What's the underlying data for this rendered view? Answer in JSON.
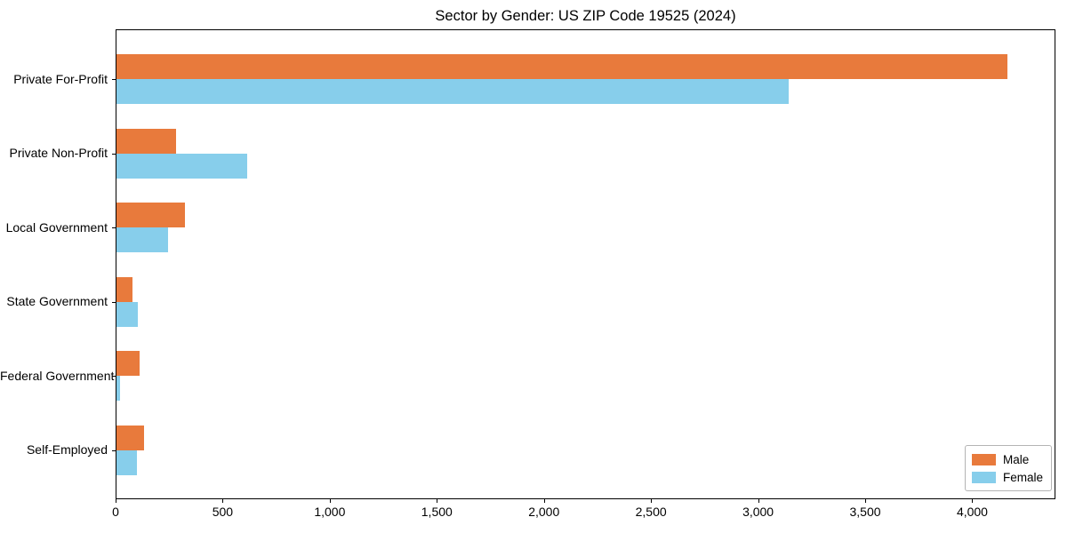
{
  "window": {
    "background": "#ffffff"
  },
  "chart_data": {
    "type": "bar",
    "orientation": "horizontal",
    "title": "Sector by Gender: US ZIP Code 19525 (2024)",
    "categories": [
      "Private For-Profit",
      "Private Non-Profit",
      "Local Government",
      "State Government",
      "Federal Government",
      "Self-Employed"
    ],
    "series": [
      {
        "name": "Male",
        "color": "#e87a3c",
        "values": [
          4160,
          280,
          320,
          75,
          110,
          130
        ]
      },
      {
        "name": "Female",
        "color": "#87ceeb",
        "values": [
          3140,
          610,
          240,
          100,
          18,
          95
        ]
      }
    ],
    "xlabel": "",
    "ylabel": "",
    "xlim": [
      0,
      4380
    ],
    "xticks": [
      0,
      500,
      1000,
      1500,
      2000,
      2500,
      3000,
      3500,
      4000
    ],
    "xtick_labels": [
      "0",
      "500",
      "1,000",
      "1,500",
      "2,000",
      "2,500",
      "3,000",
      "3,500",
      "4,000"
    ],
    "grid": false,
    "plot_frame": true,
    "legend": {
      "position": "lower right",
      "entries": [
        "Male",
        "Female"
      ]
    },
    "colors": {
      "spine": "#000000",
      "text": "#000000",
      "legend_border": "#b4b4b4"
    }
  }
}
